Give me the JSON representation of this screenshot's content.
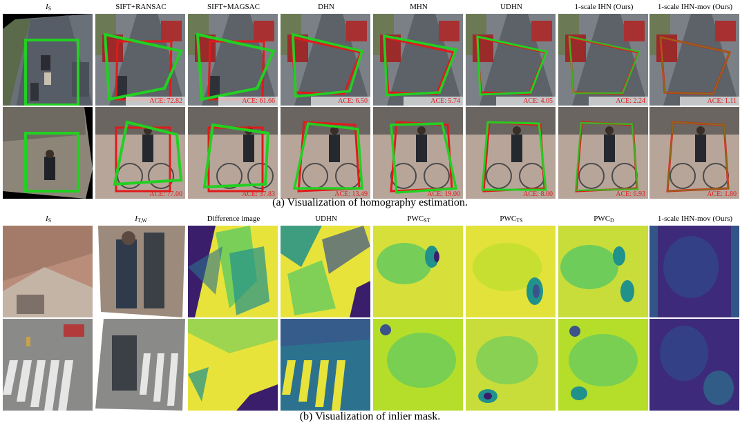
{
  "section_a": {
    "caption": "(a) Visualization of homography estimation.",
    "columns": [
      {
        "main": "I",
        "sub": "S",
        "italic": true
      },
      {
        "main": "SIFT+RANSAC",
        "sub": ""
      },
      {
        "main": "SIFT+MAGSAC",
        "sub": ""
      },
      {
        "main": "DHN",
        "sub": ""
      },
      {
        "main": "MHN",
        "sub": ""
      },
      {
        "main": "UDHN",
        "sub": ""
      },
      {
        "main": "1-scale IHN (Ours)",
        "sub": ""
      },
      {
        "main": "1-scale IHN-mov (Ours)",
        "sub": ""
      }
    ],
    "row1_ace": [
      "",
      "ACE: 72.82",
      "ACE: 61.66",
      "ACE: 6.50",
      "ACE: 5.74",
      "ACE: 4.05",
      "ACE: 2.24",
      "ACE: 1.11"
    ],
    "row2_ace": [
      "",
      "ACE: 77.00",
      "ACE: 37.83",
      "ACE: 13.49",
      "ACE: 19.00",
      "ACE: 8.00",
      "ACE: 6.93",
      "ACE: 1.80"
    ]
  },
  "section_b": {
    "caption": "(b) Visualization of inlier mask.",
    "columns": [
      {
        "main": "I",
        "sub": "S",
        "italic": true
      },
      {
        "main": "I",
        "sub": "T,W",
        "italic": true
      },
      {
        "main": "Difference image",
        "sub": ""
      },
      {
        "main": "UDHN",
        "sub": ""
      },
      {
        "main": "PWC",
        "sub": "ST"
      },
      {
        "main": "PWC",
        "sub": "TS"
      },
      {
        "main": "PWC",
        "sub": "D"
      },
      {
        "main": "1-scale IHN-mov (Ours)",
        "sub": ""
      }
    ]
  },
  "colors": {
    "estimate_green": "#22d022",
    "ground_truth_red": "#e01a1a",
    "viridis_yellow": "#e8e33a",
    "viridis_green": "#5ec962",
    "viridis_teal": "#21918c",
    "viridis_purple": "#3b1e6b"
  }
}
